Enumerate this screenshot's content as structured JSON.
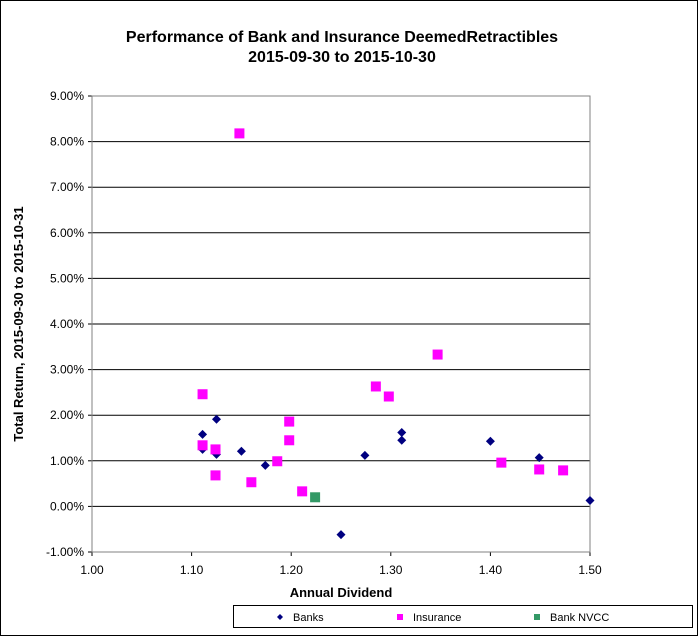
{
  "chart_data": {
    "type": "scatter",
    "title": "Performance of Bank and Insurance DeemedRetractibles",
    "subtitle": "2015-09-30 to 2015-10-30",
    "xlabel": "Annual Dividend",
    "ylabel": "Total Return, 2015-09-30  to 2015-10-31",
    "xlim": [
      1.0,
      1.5
    ],
    "ylim": [
      -1.0,
      9.0
    ],
    "x_ticks": [
      "1.00",
      "1.10",
      "1.20",
      "1.30",
      "1.40",
      "1.50"
    ],
    "y_ticks": [
      "-1.00%",
      "0.00%",
      "1.00%",
      "2.00%",
      "3.00%",
      "4.00%",
      "5.00%",
      "6.00%",
      "7.00%",
      "8.00%",
      "9.00%"
    ],
    "grid": "horizontal",
    "legend_position": "bottom",
    "series": [
      {
        "name": "Banks",
        "color": "#000080",
        "marker": "diamond",
        "points": [
          [
            1.111,
            1.25
          ],
          [
            1.111,
            1.58
          ],
          [
            1.125,
            1.91
          ],
          [
            1.125,
            1.14
          ],
          [
            1.15,
            1.21
          ],
          [
            1.174,
            0.9
          ],
          [
            1.25,
            -0.62
          ],
          [
            1.274,
            1.12
          ],
          [
            1.311,
            1.62
          ],
          [
            1.311,
            1.45
          ],
          [
            1.4,
            1.43
          ],
          [
            1.449,
            1.07
          ],
          [
            1.5,
            0.13
          ]
        ]
      },
      {
        "name": "Insurance",
        "color": "#FF00FF",
        "marker": "square",
        "points": [
          [
            1.148,
            8.18
          ],
          [
            1.111,
            2.46
          ],
          [
            1.111,
            1.34
          ],
          [
            1.124,
            1.25
          ],
          [
            1.124,
            0.68
          ],
          [
            1.16,
            0.53
          ],
          [
            1.186,
            0.99
          ],
          [
            1.198,
            1.86
          ],
          [
            1.198,
            1.45
          ],
          [
            1.211,
            0.33
          ],
          [
            1.285,
            2.63
          ],
          [
            1.298,
            2.41
          ],
          [
            1.347,
            3.33
          ],
          [
            1.411,
            0.96
          ],
          [
            1.449,
            0.81
          ],
          [
            1.473,
            0.79
          ]
        ]
      },
      {
        "name": "Bank NVCC",
        "color": "#339966",
        "marker": "square",
        "points": [
          [
            1.224,
            0.2
          ]
        ]
      }
    ]
  }
}
